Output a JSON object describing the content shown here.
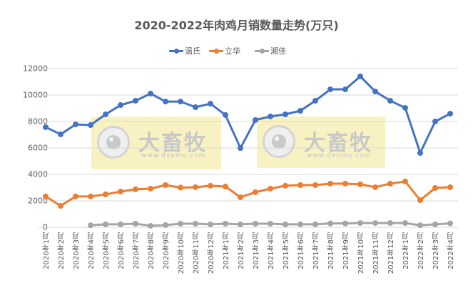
{
  "chart": {
    "title": "2020-2022年肉鸡月销数量走势(万只)"
  },
  "legend": [
    {
      "label": "温氏",
      "color": "#4472C4"
    },
    {
      "label": "立华",
      "color": "#ED7D31"
    },
    {
      "label": "湘佳",
      "color": "#A5A5A5"
    }
  ],
  "y_axis": {
    "ticks": [
      "0",
      "2000",
      "4000",
      "6000",
      "8000",
      "10000",
      "12000"
    ]
  },
  "watermarks": [
    {
      "text": "大畜牧",
      "url": "www.dxumu.com"
    },
    {
      "text": "大畜牧",
      "url": "www.dxumu.com"
    }
  ],
  "chart_data": {
    "type": "line",
    "title": "2020-2022年肉鸡月销数量走势(万只)",
    "xlabel": "",
    "ylabel": "",
    "ylim": [
      0,
      12000
    ],
    "yticks": [
      0,
      2000,
      4000,
      6000,
      8000,
      10000,
      12000
    ],
    "grid": true,
    "legend_position": "top",
    "categories": [
      "2020年1月",
      "2020年2月",
      "2020年3月",
      "2020年4月",
      "2020年5月",
      "2020年6月",
      "2020年7月",
      "2020年8月",
      "2020年9月",
      "2020年10月",
      "2020年11月",
      "2020年12月",
      "2021年1月",
      "2021年2月",
      "2021年3月",
      "2021年4月",
      "2021年5月",
      "2021年6月",
      "2021年7月",
      "2021年8月",
      "2021年9月",
      "2021年10月",
      "2021年11月",
      "2021年12月",
      "2022年1月",
      "2022年2月",
      "2022年3月",
      "2022年4月"
    ],
    "series": [
      {
        "name": "温氏",
        "color": "#4472C4",
        "values": [
          7570,
          7030,
          7780,
          7730,
          8540,
          9240,
          9570,
          10110,
          9510,
          9510,
          9080,
          9350,
          8490,
          5990,
          8110,
          8380,
          8540,
          8810,
          9570,
          10430,
          10430,
          11410,
          10270,
          9570,
          9030,
          5620,
          8000,
          8590
        ]
      },
      {
        "name": "立华",
        "color": "#ED7D31",
        "values": [
          2330,
          1620,
          2330,
          2330,
          2490,
          2700,
          2870,
          2920,
          3190,
          3000,
          3030,
          3140,
          3080,
          2270,
          2650,
          2920,
          3140,
          3190,
          3190,
          3300,
          3300,
          3250,
          3030,
          3300,
          3460,
          2050,
          2970,
          3030
        ]
      },
      {
        "name": "湘佳",
        "color": "#A5A5A5",
        "values": [
          null,
          null,
          null,
          150,
          220,
          220,
          270,
          110,
          160,
          270,
          270,
          220,
          270,
          220,
          270,
          270,
          220,
          220,
          220,
          290,
          290,
          320,
          320,
          320,
          320,
          150,
          220,
          290
        ]
      }
    ]
  }
}
